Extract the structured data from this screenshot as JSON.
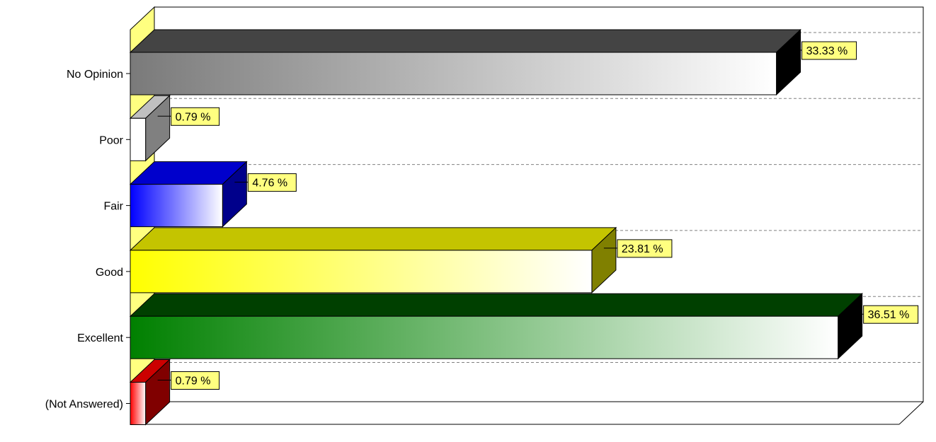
{
  "chart_data": {
    "type": "bar",
    "orientation": "horizontal",
    "three_d": true,
    "categories": [
      "No Opinion",
      "Poor",
      "Fair",
      "Good",
      "Excellent",
      "(Not Answered)"
    ],
    "values": [
      33.33,
      0.79,
      4.76,
      23.81,
      36.51,
      0.79
    ],
    "value_labels": [
      "33.33 %",
      "0.79 %",
      "4.76 %",
      "23.81 %",
      "36.51 %",
      "0.79 %"
    ],
    "xlim": [
      0,
      100
    ],
    "grid": true,
    "legend": "none",
    "colors": [
      {
        "start": "#7a7a7a",
        "end": "#ffffff",
        "top": "#444444",
        "side": "#000000"
      },
      {
        "start": "#ffffff",
        "end": "#ffffff",
        "top": "#c0c0c0",
        "side": "#808080"
      },
      {
        "start": "#0000ff",
        "end": "#ffffff",
        "top": "#0000cc",
        "side": "#00008b"
      },
      {
        "start": "#ffff00",
        "end": "#ffffff",
        "top": "#c4c400",
        "side": "#808000"
      },
      {
        "start": "#008000",
        "end": "#ffffff",
        "top": "#004000",
        "side": "#000000"
      },
      {
        "start": "#ff0000",
        "end": "#ffffff",
        "top": "#cc0000",
        "side": "#800000"
      }
    ],
    "label_box_color": "#ffff80",
    "wall_color": "#ffff80"
  }
}
